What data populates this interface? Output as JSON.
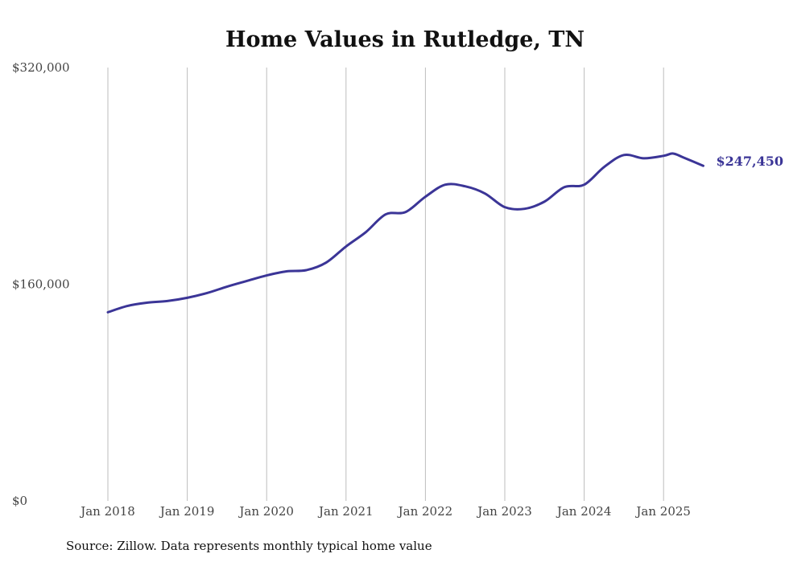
{
  "chart_data": {
    "type": "line",
    "title": "Home Values in Rutledge, TN",
    "xlabel": "",
    "ylabel": "",
    "source": "Source: Zillow. Data represents monthly typical home value",
    "ylim": [
      0,
      320000
    ],
    "xlim": [
      2018.0,
      2025.5
    ],
    "y_ticks": [
      0,
      160000,
      320000
    ],
    "y_tick_labels": [
      "$0",
      "$160,000",
      "$320,000"
    ],
    "x_ticks": [
      2018,
      2019,
      2020,
      2021,
      2022,
      2023,
      2024,
      2025
    ],
    "x_tick_labels": [
      "Jan 2018",
      "Jan 2019",
      "Jan 2020",
      "Jan 2021",
      "Jan 2022",
      "Jan 2023",
      "Jan 2024",
      "Jan 2025"
    ],
    "grid": "vertical",
    "line_color": "#3b3597",
    "end_label": "$247,450",
    "series": [
      {
        "name": "Typical home value",
        "x": [
          2018.0,
          2018.25,
          2018.5,
          2018.75,
          2019.0,
          2019.25,
          2019.5,
          2019.75,
          2020.0,
          2020.25,
          2020.5,
          2020.75,
          2021.0,
          2021.25,
          2021.5,
          2021.75,
          2022.0,
          2022.25,
          2022.5,
          2022.75,
          2023.0,
          2023.25,
          2023.5,
          2023.75,
          2024.0,
          2024.25,
          2024.5,
          2024.75,
          2025.0,
          2025.12,
          2025.25,
          2025.5
        ],
        "values": [
          139300,
          144000,
          146400,
          147600,
          150000,
          153500,
          158200,
          162400,
          166500,
          169500,
          170400,
          176000,
          187900,
          198500,
          211600,
          213300,
          224600,
          233500,
          232300,
          227000,
          216900,
          215700,
          221000,
          231700,
          233500,
          246500,
          255400,
          253000,
          254800,
          256500,
          253600,
          247450
        ]
      }
    ]
  }
}
